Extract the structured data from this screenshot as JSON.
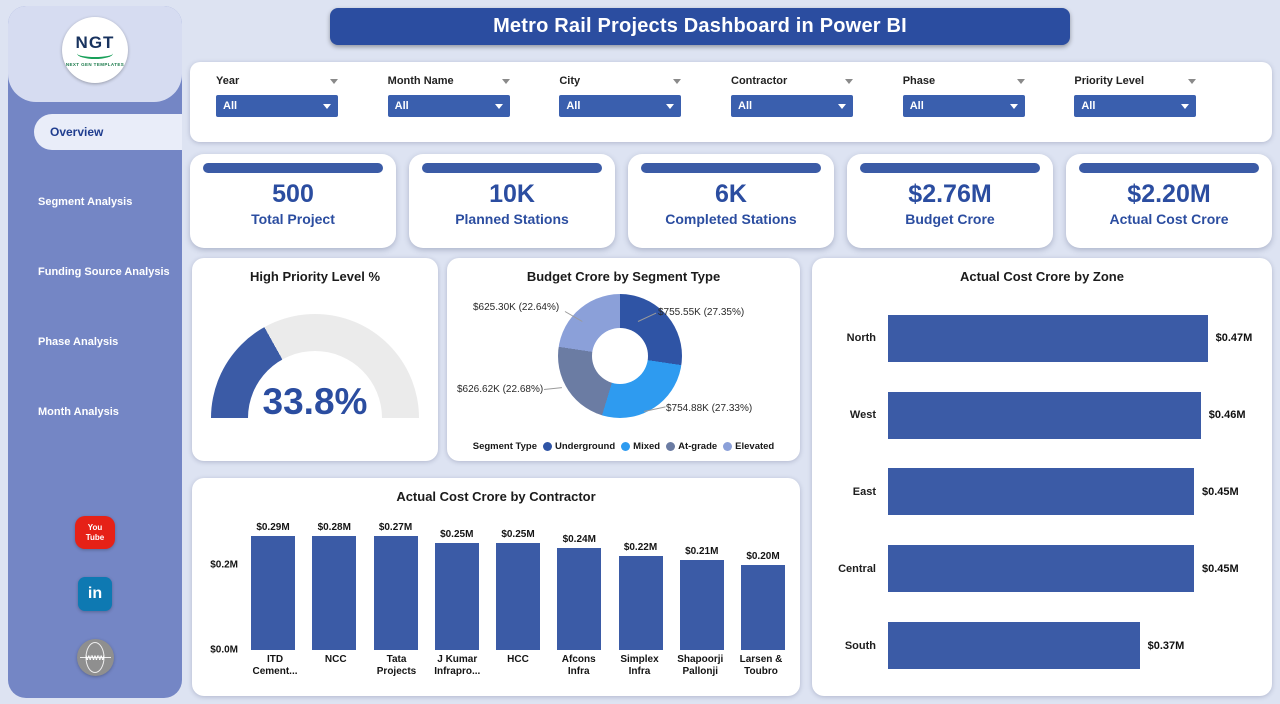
{
  "app": {
    "title": "Metro Rail Projects Dashboard in Power BI"
  },
  "colors": {
    "accent": "#2b4da0",
    "bar": "#3b5ba6",
    "sidebar": "#7486c5",
    "page_bg": "#dde3f2",
    "gauge_track": "#ebebeb",
    "card_bg": "#ffffff"
  },
  "sidebar": {
    "logo": {
      "text": "NGT",
      "subtext": "NEXT GEN TEMPLATES"
    },
    "items": [
      {
        "label": "Overview",
        "active": true
      },
      {
        "label": "Segment Analysis",
        "active": false
      },
      {
        "label": "Funding Source Analysis",
        "active": false
      },
      {
        "label": "Phase Analysis",
        "active": false
      },
      {
        "label": "Month Analysis",
        "active": false
      }
    ],
    "social": [
      {
        "name": "youtube",
        "glyph": "You Tube",
        "color": "#e62117"
      },
      {
        "name": "linkedin",
        "glyph": "in",
        "color": "#0e79b2"
      },
      {
        "name": "website",
        "glyph": "www",
        "color": "#8f8f8f"
      }
    ]
  },
  "filters": [
    {
      "label": "Year",
      "value": "All"
    },
    {
      "label": "Month Name",
      "value": "All"
    },
    {
      "label": "City",
      "value": "All"
    },
    {
      "label": "Contractor",
      "value": "All"
    },
    {
      "label": "Phase",
      "value": "All"
    },
    {
      "label": "Priority Level",
      "value": "All"
    }
  ],
  "kpis": [
    {
      "value": "500",
      "label": "Total Project"
    },
    {
      "value": "10K",
      "label": "Planned Stations"
    },
    {
      "value": "6K",
      "label": "Completed Stations"
    },
    {
      "value": "$2.76M",
      "label": "Budget Crore"
    },
    {
      "value": "$2.20M",
      "label": "Actual Cost Crore"
    }
  ],
  "chart_data": [
    {
      "type": "gauge",
      "title": "High Priority Level %",
      "value": 33.8,
      "min": 0,
      "max": 100,
      "display": "33.8%",
      "color": "#3b5ba6"
    },
    {
      "type": "pie",
      "title": "Budget Crore by Segment Type",
      "legend_title": "Segment Type",
      "legend_position": "bottom",
      "slices": [
        {
          "label": "Underground",
          "value_k": 755.55,
          "pct": 27.35,
          "display": "$755.55K (27.35%)",
          "color": "#2f54a5"
        },
        {
          "label": "Mixed",
          "value_k": 754.88,
          "pct": 27.33,
          "display": "$754.88K (27.33%)",
          "color": "#2e9bf0"
        },
        {
          "label": "At-grade",
          "value_k": 626.62,
          "pct": 22.68,
          "display": "$626.62K (22.68%)",
          "color": "#6b7ca3"
        },
        {
          "label": "Elevated",
          "value_k": 625.3,
          "pct": 22.64,
          "display": "$625.30K (22.64%)",
          "color": "#8ba0d9"
        }
      ]
    },
    {
      "type": "bar",
      "title": "Actual Cost Crore by Contractor",
      "categories": [
        "ITD Cement...",
        "NCC",
        "Tata Projects",
        "J Kumar Infrapro...",
        "HCC",
        "Afcons Infra",
        "Simplex Infra",
        "Shapoorji Pallonji",
        "Larsen & Toubro"
      ],
      "values": [
        0.29,
        0.28,
        0.27,
        0.25,
        0.25,
        0.24,
        0.22,
        0.21,
        0.2
      ],
      "labels": [
        "$0.29M",
        "$0.28M",
        "$0.27M",
        "$0.25M",
        "$0.25M",
        "$0.24M",
        "$0.22M",
        "$0.21M",
        "$0.20M"
      ],
      "ylim": [
        0,
        0.3
      ],
      "yticks": [
        {
          "label": "$0.0M",
          "value": 0
        },
        {
          "label": "$0.2M",
          "value": 0.2
        }
      ],
      "grid": false
    },
    {
      "type": "bar-horizontal",
      "title": "Actual Cost Crore by Zone",
      "categories": [
        "North",
        "West",
        "East",
        "Central",
        "South"
      ],
      "values": [
        0.47,
        0.46,
        0.45,
        0.45,
        0.37
      ],
      "labels": [
        "$0.47M",
        "$0.46M",
        "$0.45M",
        "$0.45M",
        "$0.37M"
      ],
      "xlim": [
        0,
        0.55
      ],
      "grid": false
    }
  ]
}
